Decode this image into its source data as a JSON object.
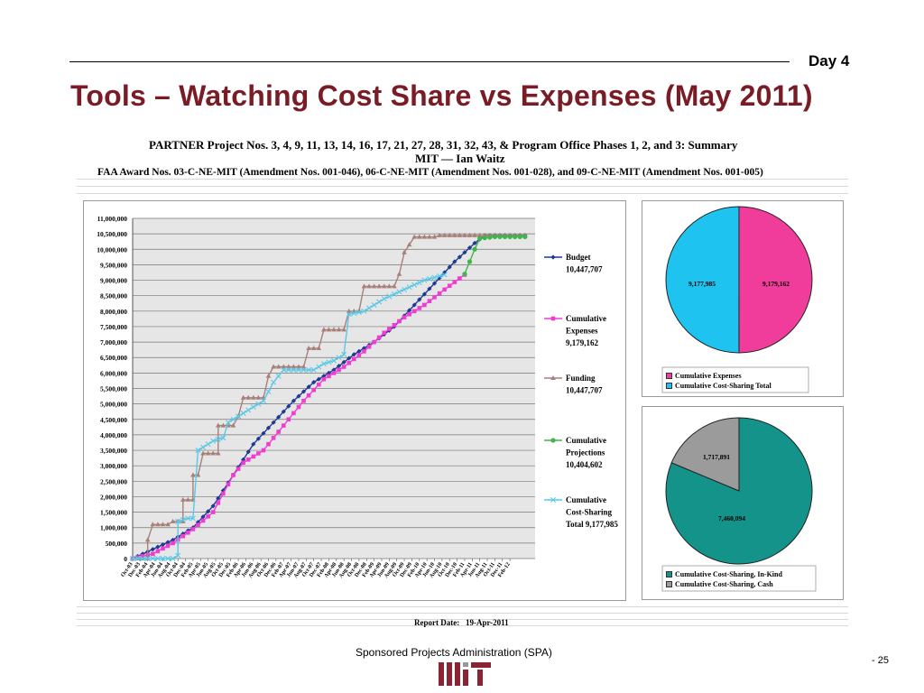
{
  "header": {
    "day": "Day 4",
    "title": "Tools – Watching Cost Share vs Expenses (May 2011)"
  },
  "report": {
    "line1": "PARTNER Project Nos. 3, 4, 9, 11, 13, 14, 16, 17, 21, 27, 28, 31, 32, 43, & Program Office Phases 1, 2, and 3: Summary",
    "line2": "MIT — Ian Waitz",
    "line3": "FAA Award Nos. 03-C-NE-MIT (Amendment Nos. 001-046),  06-C-NE-MIT (Amendment Nos. 001-028),  and 09-C-NE-MIT (Amendment Nos. 001-005)",
    "report_date_label": "Report Date:",
    "report_date": "19-Apr-2011"
  },
  "footer": {
    "org": "Sponsored Projects Administration (SPA)",
    "page": "- 25"
  },
  "colors": {
    "title": "#7a1c26",
    "budget": "#1f3a93",
    "expenses": "#f03cd2",
    "funding": "#a98079",
    "projections": "#3fb54a",
    "costshare": "#5ac8e8"
  },
  "chart_data": [
    {
      "type": "line",
      "ylim": [
        0,
        11000000
      ],
      "yticks": [
        "0",
        "500,000",
        "1,000,000",
        "1,500,000",
        "2,000,000",
        "2,500,000",
        "3,000,000",
        "3,500,000",
        "4,000,000",
        "4,500,000",
        "5,000,000",
        "5,500,000",
        "6,000,000",
        "6,500,000",
        "7,000,000",
        "7,500,000",
        "8,000,000",
        "8,500,000",
        "9,000,000",
        "9,500,000",
        "10,000,000",
        "10,500,000",
        "11,000,000"
      ],
      "x_ticks": [
        "Oct-03",
        "Dec-03",
        "Feb-04",
        "Apr-04",
        "Jun-04",
        "Aug-04",
        "Oct-04",
        "Dec-04",
        "Feb-05",
        "Apr-05",
        "Jun-05",
        "Aug-05",
        "Oct-05",
        "Dec-05",
        "Feb-06",
        "Apr-06",
        "Jun-06",
        "Aug-06",
        "Oct-06",
        "Dec-06",
        "Feb-07",
        "Apr-07",
        "Jun-07",
        "Aug-07",
        "Oct-07",
        "Dec-07",
        "Feb-08",
        "Apr-08",
        "Jun-08",
        "Aug-08",
        "Oct-08",
        "Dec-08",
        "Feb-09",
        "Apr-09",
        "Jun-09",
        "Aug-09",
        "Oct-09",
        "Dec-09",
        "Feb-10",
        "Apr-10",
        "Jun-10",
        "Aug-10",
        "Oct-10",
        "Dec-10",
        "Feb-11",
        "Apr-11",
        "Jun-11",
        "Aug-11",
        "Oct-11",
        "Dec-11",
        "Feb-12"
      ],
      "grid": true,
      "legend_position": "right",
      "series": [
        {
          "name": "Budget",
          "value_label": "10,447,707",
          "color": "#1f3a93",
          "marker": "diamond",
          "points": [
            [
              0,
              0
            ],
            [
              4,
              300000
            ],
            [
              8,
              600000
            ],
            [
              12,
              1000000
            ],
            [
              16,
              1700000
            ],
            [
              20,
              2700000
            ],
            [
              24,
              3700000
            ],
            [
              28,
              4400000
            ],
            [
              32,
              5100000
            ],
            [
              36,
              5700000
            ],
            [
              40,
              6100000
            ],
            [
              44,
              6600000
            ],
            [
              48,
              7000000
            ],
            [
              52,
              7500000
            ],
            [
              56,
              8200000
            ],
            [
              60,
              8900000
            ],
            [
              64,
              9600000
            ],
            [
              68,
              10200000
            ],
            [
              70,
              10447707
            ],
            [
              78,
              10447707
            ]
          ]
        },
        {
          "name": "Cumulative Expenses",
          "value_label": "9,179,162",
          "color": "#f03cd2",
          "marker": "square",
          "points": [
            [
              0,
              0
            ],
            [
              4,
              150000
            ],
            [
              8,
              500000
            ],
            [
              12,
              950000
            ],
            [
              16,
              1500000
            ],
            [
              18,
              2100000
            ],
            [
              20,
              2700000
            ],
            [
              22,
              3100000
            ],
            [
              26,
              3500000
            ],
            [
              30,
              4300000
            ],
            [
              34,
              5100000
            ],
            [
              38,
              5800000
            ],
            [
              42,
              6200000
            ],
            [
              46,
              6700000
            ],
            [
              50,
              7300000
            ],
            [
              54,
              7800000
            ],
            [
              58,
              8200000
            ],
            [
              62,
              8700000
            ],
            [
              66,
              9179162
            ]
          ]
        },
        {
          "name": "Funding",
          "value_label": "10,447,707",
          "color": "#a98079",
          "marker": "triangle",
          "points": [
            [
              0,
              0
            ],
            [
              3,
              0
            ],
            [
              3,
              600000
            ],
            [
              4,
              1100000
            ],
            [
              7,
              1100000
            ],
            [
              8,
              1200000
            ],
            [
              10,
              1200000
            ],
            [
              10,
              1900000
            ],
            [
              12,
              1900000
            ],
            [
              12,
              2700000
            ],
            [
              13,
              2700000
            ],
            [
              14,
              3400000
            ],
            [
              17,
              3400000
            ],
            [
              17,
              4300000
            ],
            [
              20,
              4300000
            ],
            [
              21,
              4600000
            ],
            [
              22,
              5200000
            ],
            [
              26,
              5200000
            ],
            [
              27,
              5900000
            ],
            [
              28,
              6200000
            ],
            [
              34,
              6200000
            ],
            [
              35,
              6800000
            ],
            [
              37,
              6800000
            ],
            [
              38,
              7400000
            ],
            [
              42,
              7400000
            ],
            [
              43,
              8000000
            ],
            [
              45,
              8000000
            ],
            [
              46,
              8800000
            ],
            [
              52,
              8800000
            ],
            [
              53,
              9200000
            ],
            [
              54,
              9900000
            ],
            [
              56,
              10400000
            ],
            [
              60,
              10400000
            ],
            [
              61,
              10447707
            ],
            [
              78,
              10447707
            ]
          ]
        },
        {
          "name": "Cumulative Projections",
          "value_label": "10,404,602",
          "color": "#3fb54a",
          "marker": "circle",
          "points": [
            [
              66,
              9200000
            ],
            [
              67,
              9600000
            ],
            [
              68,
              10000000
            ],
            [
              69,
              10350000
            ],
            [
              72,
              10404602
            ],
            [
              78,
              10404602
            ]
          ]
        },
        {
          "name": "Cumulative Cost-Sharing Total",
          "value_label": "9,177,985",
          "color": "#5ac8e8",
          "marker": "x",
          "points": [
            [
              0,
              0
            ],
            [
              8,
              0
            ],
            [
              9,
              100000
            ],
            [
              9,
              1200000
            ],
            [
              11,
              1300000
            ],
            [
              12,
              1300000
            ],
            [
              13,
              3500000
            ],
            [
              16,
              3800000
            ],
            [
              18,
              3900000
            ],
            [
              19,
              4400000
            ],
            [
              22,
              4700000
            ],
            [
              26,
              5100000
            ],
            [
              28,
              5700000
            ],
            [
              30,
              6100000
            ],
            [
              34,
              6100000
            ],
            [
              36,
              6100000
            ],
            [
              38,
              6300000
            ],
            [
              40,
              6400000
            ],
            [
              42,
              6600000
            ],
            [
              43,
              7900000
            ],
            [
              46,
              8000000
            ],
            [
              50,
              8400000
            ],
            [
              54,
              8700000
            ],
            [
              58,
              9000000
            ],
            [
              62,
              9177985
            ]
          ]
        }
      ]
    },
    {
      "type": "pie",
      "slices": [
        {
          "name": "Cumulative Expenses",
          "value": 9179162,
          "label": "9,179,162",
          "color": "#f03c9a"
        },
        {
          "name": "Cumulative Cost-Sharing Total",
          "value": 9177985,
          "label": "9,177,985",
          "color": "#1ec3ef"
        }
      ]
    },
    {
      "type": "pie",
      "slices": [
        {
          "name": "Cumulative Cost-Sharing, In-Kind",
          "value": 7460094,
          "label": "7,460,094",
          "color": "#13938a"
        },
        {
          "name": "Cumulative Cost-Sharing, Cash",
          "value": 1717891,
          "label": "1,717,891",
          "color": "#9b9b9b"
        }
      ]
    }
  ]
}
